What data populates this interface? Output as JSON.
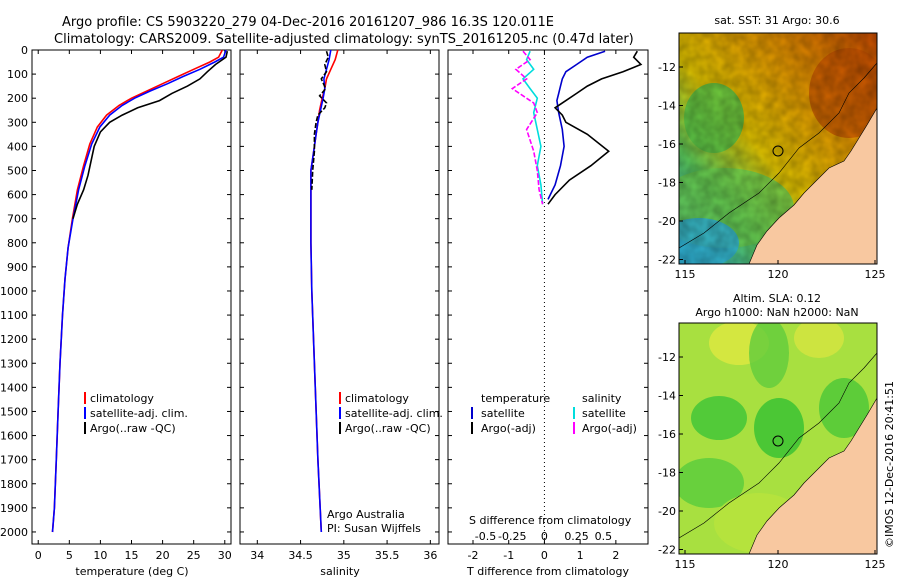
{
  "header": {
    "line1": "Argo profile: CS 5903220_279 04-Dec-2016 20161207_986 16.3S 120.011E",
    "line2": "Climatology: CARS2009. Satellite-adjusted climatology: synTS_20161205.nc (0.47d later)"
  },
  "chart_data": [
    {
      "type": "line",
      "id": "temperature",
      "xlabel": "temperature (deg C)",
      "ylabel": "",
      "xlim": [
        -1,
        31
      ],
      "ylim": [
        2050,
        0
      ],
      "xticks": [
        0,
        5,
        10,
        15,
        20,
        25,
        30
      ],
      "yticks": [
        0,
        100,
        200,
        300,
        400,
        500,
        600,
        700,
        800,
        900,
        1000,
        1100,
        1200,
        1300,
        1400,
        1500,
        1600,
        1700,
        1800,
        1900,
        2000
      ],
      "legend": [
        "climatology",
        "satellite-adj. clim.",
        "Argo(..raw -QC)"
      ],
      "series": [
        {
          "name": "climatology",
          "color": "#ff0000",
          "x": [
            29.6,
            29.0,
            27.6,
            25.0,
            22.5,
            20.0,
            17.5,
            15.0,
            13.0,
            11.0,
            9.5,
            8.3,
            7.3,
            6.3,
            5.5,
            4.8,
            4.3,
            3.9,
            3.5,
            3.2,
            2.9,
            2.6,
            2.3
          ],
          "y": [
            0,
            30,
            50,
            80,
            110,
            140,
            170,
            200,
            230,
            270,
            320,
            390,
            480,
            580,
            700,
            820,
            950,
            1100,
            1300,
            1500,
            1700,
            1900,
            2000
          ]
        },
        {
          "name": "satellite-adj. clim.",
          "color": "#0000ff",
          "x": [
            30.2,
            29.8,
            28.4,
            26.0,
            23.3,
            20.8,
            18.0,
            15.5,
            13.5,
            11.5,
            9.9,
            8.6,
            7.5,
            6.5,
            5.6,
            4.8,
            4.3,
            3.9,
            3.5,
            3.2,
            2.9,
            2.6,
            2.3
          ],
          "y": [
            0,
            30,
            50,
            80,
            110,
            140,
            170,
            200,
            230,
            270,
            320,
            390,
            480,
            580,
            700,
            820,
            950,
            1100,
            1300,
            1500,
            1700,
            1900,
            2000
          ]
        },
        {
          "name": "Argo(..raw -QC)",
          "color": "#000000",
          "x": [
            30.4,
            30.2,
            28.5,
            27.2,
            26.0,
            24.0,
            21.5,
            19.5,
            16.0,
            13.5,
            11.5,
            10.0,
            9.0,
            8.5,
            8.0,
            7.3,
            6.3,
            5.6
          ],
          "y": [
            5,
            30,
            60,
            90,
            120,
            150,
            180,
            210,
            240,
            270,
            300,
            340,
            400,
            460,
            520,
            580,
            640,
            700
          ]
        }
      ],
      "annotations": []
    },
    {
      "type": "line",
      "id": "salinity",
      "xlabel": "salinity",
      "ylabel": "",
      "xlim": [
        33.8,
        36.1
      ],
      "ylim": [
        2050,
        0
      ],
      "xticks": [
        34,
        34.5,
        35,
        35.5,
        36
      ],
      "yticks": [
        0,
        100,
        200,
        300,
        400,
        500,
        600,
        700,
        800,
        900,
        1000,
        1100,
        1200,
        1300,
        1400,
        1500,
        1600,
        1700,
        1800,
        1900,
        2000
      ],
      "legend": [
        "climatology",
        "satellite-adj. clim.",
        "Argo(..raw -QC)"
      ],
      "series": [
        {
          "name": "climatology",
          "color": "#ff0000",
          "x": [
            34.93,
            34.9,
            34.85,
            34.8,
            34.78,
            34.75,
            34.72,
            34.7,
            34.68,
            34.66,
            34.64,
            34.62,
            34.62,
            34.62,
            34.63,
            34.66,
            34.7,
            34.74
          ],
          "y": [
            0,
            40,
            80,
            120,
            160,
            200,
            250,
            300,
            350,
            400,
            450,
            500,
            600,
            800,
            1000,
            1300,
            1700,
            2000
          ]
        },
        {
          "name": "satellite-adj. clim.",
          "color": "#0000ff",
          "x": [
            34.85,
            34.83,
            34.8,
            34.77,
            34.78,
            34.76,
            34.73,
            34.7,
            34.68,
            34.66,
            34.64,
            34.62,
            34.62,
            34.62,
            34.63,
            34.66,
            34.7,
            34.74
          ],
          "y": [
            0,
            40,
            80,
            120,
            160,
            200,
            250,
            300,
            350,
            400,
            450,
            500,
            600,
            800,
            1000,
            1300,
            1700,
            2000
          ]
        },
        {
          "name": "Argo(..raw -QC)",
          "color": "#000000",
          "x": [
            34.8,
            34.82,
            34.78,
            34.8,
            34.74,
            34.79,
            34.72,
            34.8,
            34.78,
            34.7,
            34.68,
            34.66,
            34.66,
            34.64,
            34.63
          ],
          "y": [
            5,
            30,
            60,
            90,
            120,
            160,
            190,
            220,
            240,
            270,
            300,
            350,
            420,
            500,
            580
          ],
          "dash": true
        }
      ],
      "annotations": [
        "Argo Australia",
        "PI: Susan Wijffels"
      ]
    },
    {
      "type": "line",
      "id": "difference",
      "xlabel": "T difference from climatology",
      "xlabel_top": "S difference from climatology",
      "ylim": [
        2050,
        0
      ],
      "xlim_T": [
        -2.7,
        2.9
      ],
      "xticks_T": [
        -2,
        -1,
        0,
        1,
        2
      ],
      "xticks_S": [
        "-0.5",
        "-0.25",
        "0",
        "0.25",
        "0.5"
      ],
      "legend_temperature": [
        "temperature",
        "satellite",
        "Argo(-adj)"
      ],
      "legend_salinity": [
        "salinity",
        "satellite",
        "Argo(-adj)"
      ],
      "series": [
        {
          "name": "temperature satellite",
          "color": "#0000cc",
          "x": [
            1.7,
            1.2,
            0.9,
            0.6,
            0.5,
            0.45,
            0.4,
            0.35,
            0.4,
            0.5,
            0.55,
            0.45,
            0.3,
            0.1
          ],
          "y": [
            5,
            30,
            60,
            90,
            120,
            150,
            180,
            210,
            260,
            330,
            400,
            480,
            560,
            620
          ]
        },
        {
          "name": "temperature Argo(-adj)",
          "color": "#000000",
          "x": [
            2.6,
            2.5,
            2.7,
            2.2,
            1.6,
            1.2,
            0.9,
            0.6,
            0.3,
            0.5,
            0.6,
            1.2,
            1.8,
            1.3,
            0.7,
            0.3,
            0.1
          ],
          "y": [
            5,
            30,
            60,
            90,
            120,
            150,
            180,
            210,
            240,
            270,
            300,
            350,
            420,
            480,
            540,
            600,
            640
          ]
        },
        {
          "name": "salinity satellite",
          "color": "#00dddd",
          "x": [
            -0.4,
            -0.5,
            -0.3,
            -0.6,
            -0.4,
            -0.2,
            -0.3,
            -0.2,
            -0.1,
            -0.2,
            -0.1,
            -0.05
          ],
          "y": [
            5,
            40,
            80,
            120,
            160,
            200,
            260,
            330,
            400,
            480,
            560,
            640
          ]
        },
        {
          "name": "salinity Argo(-adj)",
          "color": "#ff00ff",
          "x": [
            -0.6,
            -0.4,
            -0.8,
            -0.5,
            -0.9,
            -0.3,
            -0.2,
            -0.5,
            -0.3,
            -0.2,
            -0.15,
            -0.05
          ],
          "y": [
            5,
            40,
            80,
            120,
            160,
            220,
            260,
            330,
            420,
            500,
            580,
            640
          ],
          "dash": true
        }
      ],
      "annotations": []
    }
  ],
  "maps": {
    "sst": {
      "title": "sat. SST: 31 Argo: 30.6",
      "xticks": [
        "115",
        "120",
        "125"
      ],
      "yticks": [
        "-12",
        "-14",
        "-16",
        "-18",
        "-20",
        "-22"
      ]
    },
    "sla": {
      "title1": "Altim. SLA: 0.12",
      "title2": "Argo h1000: NaN h2000: NaN",
      "xticks": [
        "115",
        "120",
        "125"
      ],
      "yticks": [
        "-12",
        "-14",
        "-16",
        "-18",
        "-20",
        "-22"
      ]
    }
  },
  "credit": "©IMOS 12-Dec-2016 20:41:51",
  "colors": {
    "climatology": "#ff0000",
    "satellite": "#0000ff",
    "argo": "#000000",
    "land": "#f8c8a0",
    "argo_salinity_satellite": "#00dddd",
    "argo_salinity_adj": "#ff00ff"
  }
}
